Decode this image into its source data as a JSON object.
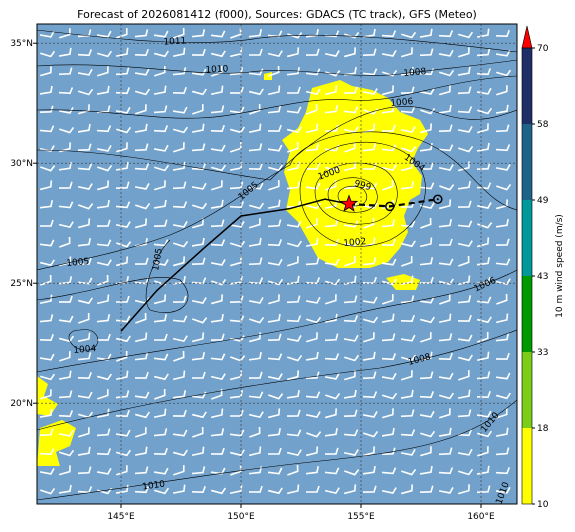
{
  "chart_data": {
    "type": "map",
    "title": "Forecast of 2026081412 (f000), Sources: GDACS (TC track), GFS (Meteo)",
    "xlim": [
      141.5,
      161.5
    ],
    "ylim": [
      15.8,
      35.8
    ],
    "xticks": [
      {
        "value": 145,
        "label": "145°E"
      },
      {
        "value": 150,
        "label": "150°E"
      },
      {
        "value": 155,
        "label": "155°E"
      },
      {
        "value": 160,
        "label": "160°E"
      }
    ],
    "yticks": [
      {
        "value": 20,
        "label": "20°N"
      },
      {
        "value": 25,
        "label": "25°N"
      },
      {
        "value": 30,
        "label": "30°N"
      },
      {
        "value": 35,
        "label": "35°N"
      }
    ],
    "grid": true,
    "track": {
      "past_x": [
        145.0,
        146.5,
        148.5,
        150.0,
        152.0,
        153.5,
        154.5
      ],
      "past_y": [
        23.0,
        24.7,
        26.5,
        27.8,
        28.1,
        28.5,
        28.3
      ],
      "forecast_x": [
        154.5,
        156.2,
        158.2
      ],
      "forecast_y": [
        28.3,
        28.2,
        28.5
      ],
      "color": "#000000",
      "marker_color": "#ff0000"
    },
    "contour_labels": [
      "1011",
      "1010",
      "1008",
      "1006",
      "1004",
      "1000",
      "999",
      "1005",
      "1002",
      "1005",
      "1005",
      "1006",
      "1004",
      "1008",
      "1010",
      "1010",
      "1010"
    ],
    "colorbar": {
      "label": "10 m wind speed (m/s)",
      "ticks": [
        10,
        18,
        33,
        43,
        49,
        58,
        70
      ],
      "colors": [
        "#ffff00",
        "#7ccc1a",
        "#009a00",
        "#009898",
        "#1f6488",
        "#1e2e66"
      ],
      "extend_color": "#ff0000"
    }
  }
}
